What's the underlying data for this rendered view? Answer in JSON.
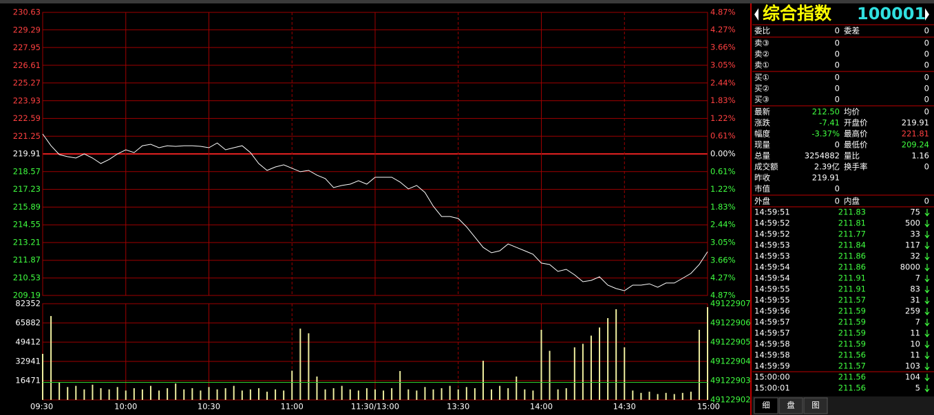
{
  "chart_data": [
    {
      "type": "line",
      "x": [
        0,
        3,
        6,
        9,
        12,
        15,
        18,
        21,
        24,
        27,
        30,
        33,
        36,
        39,
        42,
        45,
        48,
        51,
        54,
        57,
        60,
        63,
        66,
        69,
        72,
        75,
        78,
        81,
        84,
        87,
        90,
        93,
        96,
        99,
        102,
        105,
        108,
        111,
        114,
        117,
        120,
        123,
        126,
        129,
        132,
        135,
        138,
        141,
        144,
        147,
        150,
        153,
        156,
        159,
        162,
        165,
        168,
        171,
        174,
        177,
        180,
        183,
        186,
        189,
        192,
        195,
        198,
        201,
        204,
        207,
        210,
        213,
        216,
        219,
        222,
        225,
        228,
        231,
        234,
        237,
        240
      ],
      "series": [
        {
          "color": "#ffffff",
          "values": [
            221.42,
            220.53,
            219.86,
            219.7,
            219.6,
            219.91,
            219.6,
            219.18,
            219.49,
            219.91,
            220.22,
            220.01,
            220.53,
            220.64,
            220.38,
            220.53,
            220.48,
            220.53,
            220.53,
            220.48,
            220.38,
            220.74,
            220.22,
            220.38,
            220.53,
            220.01,
            219.18,
            218.66,
            218.92,
            219.08,
            218.82,
            218.56,
            218.66,
            218.3,
            218.04,
            217.36,
            217.52,
            217.62,
            217.88,
            217.62,
            218.14,
            218.14,
            218.14,
            217.78,
            217.26,
            217.52,
            216.99,
            215.95,
            215.17,
            215.17,
            215.02,
            214.39,
            213.61,
            212.83,
            212.42,
            212.57,
            213.09,
            212.83,
            212.57,
            212.31,
            211.64,
            211.53,
            211.01,
            211.17,
            210.75,
            210.23,
            210.33,
            210.6,
            209.97,
            209.71,
            209.55,
            209.97,
            209.97,
            210.07,
            209.81,
            210.13,
            210.13,
            210.49,
            210.86,
            211.53,
            212.5
          ]
        }
      ],
      "xlim": [
        0,
        240
      ],
      "ylim": [
        209.19,
        230.63
      ],
      "yticks": [
        230.63,
        229.29,
        227.95,
        226.61,
        225.27,
        223.93,
        222.59,
        221.25,
        219.91,
        218.57,
        217.23,
        215.89,
        214.55,
        213.21,
        211.87,
        210.53,
        209.19
      ],
      "y2lim": [
        -4.87,
        4.87
      ],
      "y2ticks": [
        {
          "value": 4.87,
          "label": "4.87%"
        },
        {
          "value": 4.27,
          "label": "4.27%"
        },
        {
          "value": 3.66,
          "label": "3.66%"
        },
        {
          "value": 3.05,
          "label": "3.05%"
        },
        {
          "value": 2.44,
          "label": "2.44%"
        },
        {
          "value": 1.83,
          "label": "1.83%"
        },
        {
          "value": 1.22,
          "label": "1.22%"
        },
        {
          "value": 0.61,
          "label": "0.61%"
        },
        {
          "value": 0,
          "label": "0.00%"
        },
        {
          "value": -0.61,
          "label": "0.61%"
        },
        {
          "value": -1.22,
          "label": "1.22%"
        },
        {
          "value": -1.83,
          "label": "1.83%"
        },
        {
          "value": -2.44,
          "label": "2.44%"
        },
        {
          "value": -3.05,
          "label": "3.05%"
        },
        {
          "value": -3.66,
          "label": "3.66%"
        },
        {
          "value": -4.27,
          "label": "4.27%"
        },
        {
          "value": -4.87,
          "label": "4.87%"
        }
      ],
      "up_color": "#ff4040",
      "down_color": "#40ff40",
      "grid": true
    },
    {
      "type": "bar",
      "x": [
        0,
        3,
        6,
        9,
        12,
        15,
        18,
        21,
        24,
        27,
        30,
        33,
        36,
        39,
        42,
        45,
        48,
        51,
        54,
        57,
        60,
        63,
        66,
        69,
        72,
        75,
        78,
        81,
        84,
        87,
        90,
        93,
        96,
        99,
        102,
        105,
        108,
        111,
        114,
        117,
        120,
        123,
        126,
        129,
        132,
        135,
        138,
        141,
        144,
        147,
        150,
        153,
        156,
        159,
        162,
        165,
        168,
        171,
        174,
        177,
        180,
        183,
        186,
        189,
        192,
        195,
        198,
        201,
        204,
        207,
        210,
        213,
        216,
        219,
        222,
        225,
        228,
        231,
        234,
        237,
        240
      ],
      "values": [
        39400,
        71800,
        15000,
        11000,
        12000,
        9000,
        13000,
        10000,
        9000,
        11000,
        8000,
        10000,
        9000,
        12000,
        8000,
        10000,
        14000,
        9000,
        10000,
        8000,
        11000,
        9000,
        10000,
        12000,
        8000,
        9000,
        10000,
        7000,
        9000,
        8000,
        25000,
        61000,
        57000,
        20000,
        9000,
        10000,
        12000,
        9000,
        8000,
        10000,
        9000,
        8000,
        10000,
        24700,
        9000,
        8000,
        11000,
        9000,
        10000,
        12000,
        9000,
        11000,
        10000,
        33500,
        9000,
        12000,
        10000,
        20000,
        9000,
        8000,
        60000,
        42000,
        9000,
        10000,
        45000,
        48000,
        55000,
        62000,
        70000,
        77600,
        45000,
        8000,
        6000,
        7000,
        5000,
        6000,
        5000,
        6000,
        7000,
        60000,
        79400
      ],
      "color": "#f0f0a0",
      "average": 15000,
      "average_color": "#30d030",
      "xlim": [
        0,
        240
      ],
      "xticks": [
        {
          "value": 0,
          "label": "09:30"
        },
        {
          "value": 30,
          "label": "10:00"
        },
        {
          "value": 60,
          "label": "10:30"
        },
        {
          "value": 90,
          "label": "11:00"
        },
        {
          "value": 120,
          "label": "11:30/13:00"
        },
        {
          "value": 150,
          "label": "13:30"
        },
        {
          "value": 180,
          "label": "14:00"
        },
        {
          "value": 210,
          "label": "14:30"
        },
        {
          "value": 240,
          "label": "15:00"
        }
      ],
      "ylim": [
        0,
        82352
      ],
      "yticks": [
        16471,
        32941,
        49412,
        65882,
        82352
      ],
      "y2lim": [
        49122902,
        49122907
      ],
      "y2ticks": [
        49122902,
        49122903,
        49122904,
        49122905,
        49122906,
        49122907
      ],
      "grid": true
    }
  ],
  "quote": {
    "title": "综合指数",
    "code": "100001",
    "order_book": [
      [
        "委比",
        "0",
        "委差",
        "0"
      ],
      [
        "卖③",
        "0",
        "0"
      ],
      [
        "卖②",
        "0",
        "0"
      ],
      [
        "卖①",
        "0",
        "0"
      ],
      [
        "买①",
        "0",
        "0"
      ],
      [
        "买②",
        "0",
        "0"
      ],
      [
        "买③",
        "0",
        "0"
      ]
    ],
    "stats": [
      [
        "最新",
        "212.50",
        "均价",
        "0"
      ],
      [
        "涨跌",
        "-7.41",
        "开盘价",
        "219.91"
      ],
      [
        "幅度",
        "-3.37%",
        "最高价",
        "221.81"
      ],
      [
        "现量",
        "0",
        "最低价",
        "209.24"
      ],
      [
        "总量",
        "3254882",
        "量比",
        "1.16"
      ],
      [
        "成交额",
        "2.39亿",
        "换手率",
        "0"
      ],
      [
        "昨收",
        "219.91"
      ],
      [
        "市值",
        "0"
      ]
    ],
    "stats_colors": [
      [
        "#40ff40",
        "#ffffff"
      ],
      [
        "#40ff40",
        "#ffffff"
      ],
      [
        "#40ff40",
        "#ff4040"
      ],
      [
        "#ffffff",
        "#40ff40"
      ],
      [
        "#ffffff",
        "#ffffff"
      ],
      [
        "#ffffff",
        "#ffffff"
      ],
      [
        "#ffffff"
      ],
      [
        "#ffffff"
      ]
    ],
    "outer_inner": [
      "外盘",
      "0",
      "内盘",
      "0"
    ],
    "ticks": [
      [
        "14:59:51",
        "211.83",
        "75"
      ],
      [
        "14:59:52",
        "211.81",
        "500"
      ],
      [
        "14:59:52",
        "211.77",
        "33"
      ],
      [
        "14:59:53",
        "211.84",
        "117"
      ],
      [
        "14:59:53",
        "211.86",
        "32"
      ],
      [
        "14:59:54",
        "211.86",
        "8000"
      ],
      [
        "14:59:54",
        "211.91",
        "7"
      ],
      [
        "14:59:55",
        "211.91",
        "83"
      ],
      [
        "14:59:55",
        "211.57",
        "31"
      ],
      [
        "14:59:56",
        "211.59",
        "259"
      ],
      [
        "14:59:57",
        "211.59",
        "7"
      ],
      [
        "14:59:57",
        "211.59",
        "11"
      ],
      [
        "14:59:58",
        "211.59",
        "10"
      ],
      [
        "14:59:58",
        "211.56",
        "11"
      ],
      [
        "14:59:59",
        "211.57",
        "103"
      ],
      [
        "15:00:00",
        "211.56",
        "104"
      ],
      [
        "15:00:01",
        "211.56",
        "5"
      ]
    ],
    "tabs": [
      "细",
      "盘",
      "图"
    ]
  }
}
